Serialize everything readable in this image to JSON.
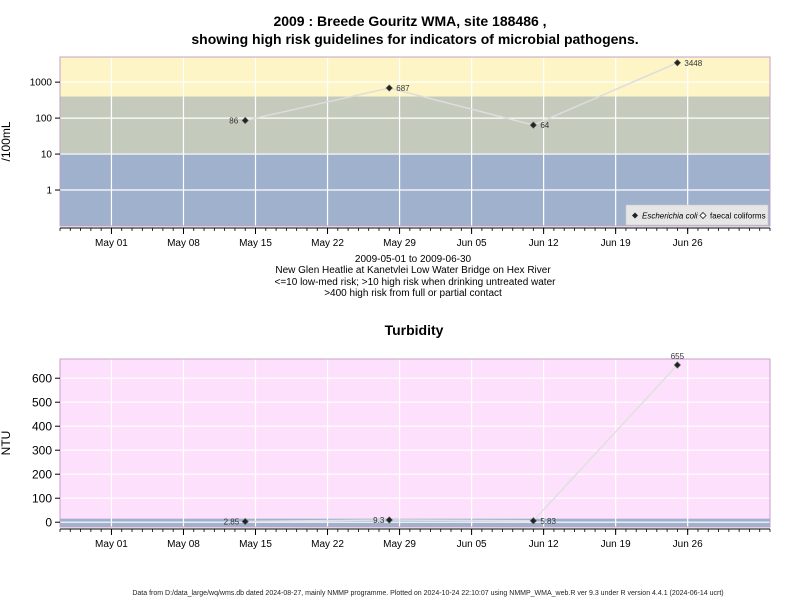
{
  "chart_data": [
    {
      "type": "line",
      "title": "2009 : Breede Gouritz WMA, site 188486 ,",
      "subtitle": "showing high risk guidelines for indicators of microbial pathogens.",
      "ylabel": "/100mL",
      "yscale": "log",
      "ylim": [
        0.1,
        5000
      ],
      "yticks": [
        1,
        10,
        100,
        1000
      ],
      "ytick_labels": [
        "1",
        "10",
        "100",
        "1000"
      ],
      "x_range": [
        "2009-04-26",
        "2009-07-04"
      ],
      "xticks": [
        "2009-05-01",
        "2009-05-08",
        "2009-05-15",
        "2009-05-22",
        "2009-05-29",
        "2009-06-05",
        "2009-06-12",
        "2009-06-19",
        "2009-06-26"
      ],
      "xtick_labels": [
        "May 01",
        "May 08",
        "May 15",
        "May 22",
        "May 29",
        "Jun 05",
        "Jun 12",
        "Jun 19",
        "Jun 26"
      ],
      "bands": [
        {
          "from": 0.1,
          "to": 10,
          "color": "#9fb1cd"
        },
        {
          "from": 10,
          "to": 400,
          "color": "#c4cbbd"
        },
        {
          "from": 400,
          "to": 5000,
          "color": "#fdf5c6"
        }
      ],
      "series": [
        {
          "name": "Escherichia coli",
          "marker": "filled-diamond",
          "color": "#333333",
          "x": [
            "2009-05-14",
            "2009-05-28",
            "2009-06-11",
            "2009-06-25"
          ],
          "values": [
            86,
            687,
            64,
            3448
          ],
          "labels": [
            "86",
            "687",
            "64",
            "3448"
          ]
        },
        {
          "name": "faecal coliforms",
          "marker": "open-diamond",
          "color": "#333333",
          "x": [],
          "values": [],
          "labels": []
        }
      ],
      "legend_position": "bottom-right",
      "notes": [
        "2009-05-01 to 2009-06-30",
        "New Glen Heatlie at Kanetvlei Low Water Bridge on Hex River",
        "<=10 low-med risk; >10 high risk when drinking untreated water",
        ">400 high risk from full or partial contact"
      ],
      "colors": {
        "panel_border": "#c8a0c8",
        "grid": "#ffffff",
        "line": "#dddddd"
      }
    },
    {
      "type": "line",
      "title": "Turbidity",
      "ylabel": "NTU",
      "ylim": [
        -20,
        680
      ],
      "yticks": [
        0,
        100,
        200,
        300,
        400,
        500,
        600
      ],
      "ytick_labels": [
        "0",
        "100",
        "200",
        "300",
        "400",
        "500",
        "600"
      ],
      "x_range": [
        "2009-04-26",
        "2009-07-04"
      ],
      "xticks": [
        "2009-05-01",
        "2009-05-08",
        "2009-05-15",
        "2009-05-22",
        "2009-05-29",
        "2009-06-05",
        "2009-06-12",
        "2009-06-19",
        "2009-06-26"
      ],
      "xtick_labels": [
        "May 01",
        "May 08",
        "May 15",
        "May 22",
        "May 29",
        "Jun 05",
        "Jun 12",
        "Jun 19",
        "Jun 26"
      ],
      "bands": [
        {
          "from": -20,
          "to": 15,
          "color": "#9fb1cd"
        },
        {
          "from": 15,
          "to": 680,
          "color": "#fde0fb"
        }
      ],
      "series": [
        {
          "name": "",
          "marker": "filled-diamond",
          "color": "#333333",
          "x": [
            "2009-05-14",
            "2009-05-28",
            "2009-06-11",
            "2009-06-25"
          ],
          "values": [
            2.85,
            9.3,
            5.83,
            655
          ],
          "labels": [
            "2.85",
            "9.3",
            "5.83",
            "655"
          ]
        }
      ],
      "colors": {
        "panel_border": "#c8a0c8",
        "grid": "#ffffff",
        "line": "#e0e0e0"
      }
    }
  ],
  "footer": "Data from D:/data_large/wq/wms.db dated 2024-08-27, mainly NMMP programme. Plotted on 2024-10-24 22:10:07 using NMMP_WMA_web.R ver 9.3 under R version 4.4.1 (2024-06-14 ucrt)"
}
